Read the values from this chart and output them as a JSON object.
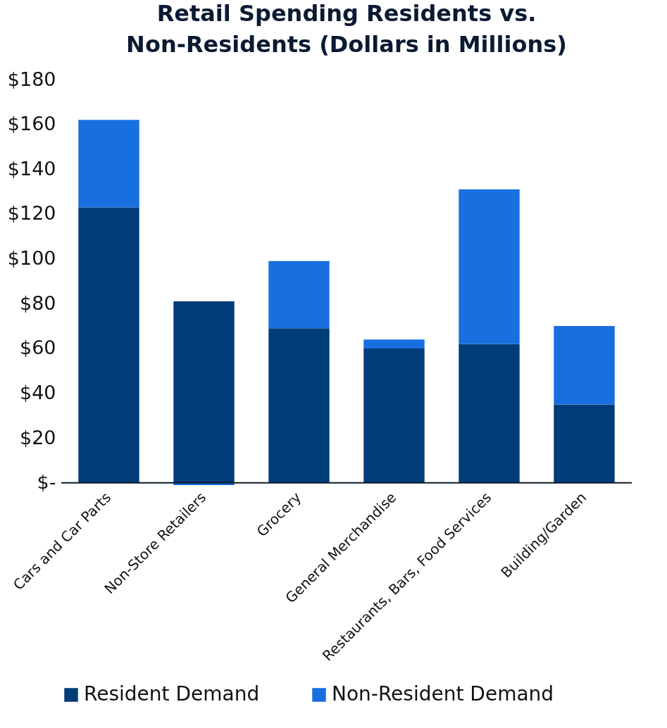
{
  "chart_data": {
    "type": "bar",
    "title": "Retail Spending Residents vs. Non-Residents (Dollars in Millions)",
    "categories": [
      "Cars and Car Parts",
      "Non-Store Retailers",
      "Grocery",
      "General Merchandise",
      "Restaurants, Bars, Food Services",
      "Building/Garden"
    ],
    "stacked": true,
    "series": [
      {
        "name": "Resident Demand",
        "color": "#003c78",
        "values": [
          123,
          81,
          69,
          60,
          62,
          35
        ]
      },
      {
        "name": "Non-Resident Demand",
        "color": "#176fe0",
        "values": [
          39,
          -1,
          30,
          4,
          69,
          35
        ]
      }
    ],
    "ylim": [
      -1,
      180
    ],
    "yticks": [
      {
        "value": 0,
        "label": "$-"
      },
      {
        "value": 20,
        "label": "$20"
      },
      {
        "value": 40,
        "label": "$40"
      },
      {
        "value": 60,
        "label": "$60"
      },
      {
        "value": 80,
        "label": "$80"
      },
      {
        "value": 100,
        "label": "$100"
      },
      {
        "value": 120,
        "label": "$120"
      },
      {
        "value": 140,
        "label": "$140"
      },
      {
        "value": 160,
        "label": "$160"
      },
      {
        "value": 180,
        "label": "$180"
      }
    ],
    "grid": false,
    "legend": "bottom"
  }
}
